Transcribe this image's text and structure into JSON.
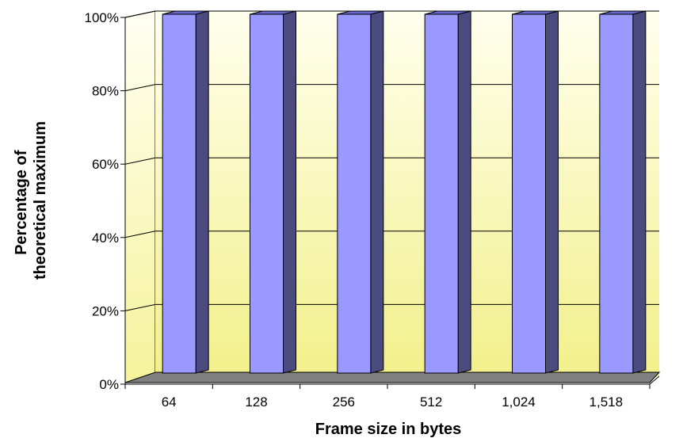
{
  "chart_data": {
    "type": "bar",
    "title": "",
    "xlabel": "Frame size in bytes",
    "ylabel_lines": [
      "Percentage of",
      "theoretical maximum"
    ],
    "categories": [
      "64",
      "128",
      "256",
      "512",
      "1,024",
      "1,518"
    ],
    "series": [
      {
        "values": [
          100,
          100,
          100,
          100,
          100,
          100
        ]
      }
    ],
    "ylim": [
      0,
      100
    ],
    "y_ticks": [
      "0%",
      "20%",
      "40%",
      "60%",
      "80%",
      "100%"
    ],
    "grid": true,
    "legend": "none",
    "style": "3d-column",
    "colors": {
      "bar_front": "#9999ff",
      "bar_side": "#4b4b80",
      "bar_top": "#6666cc",
      "wall_top": "#ffffee",
      "wall_bottom": "#f2f08a",
      "floor": "#808080"
    }
  }
}
